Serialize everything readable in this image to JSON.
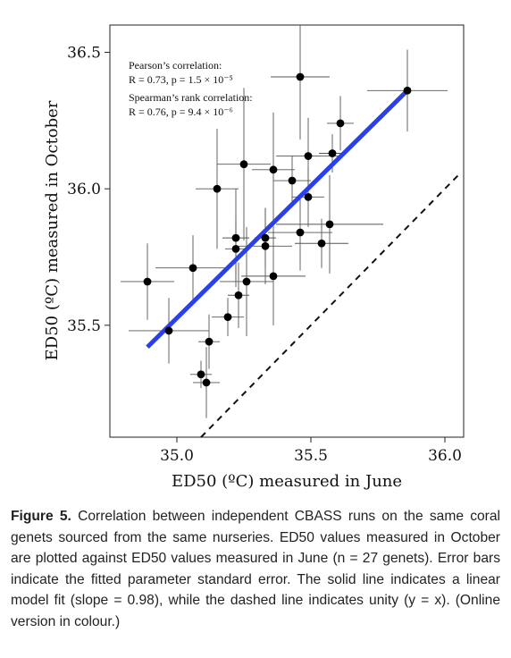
{
  "chart_data": {
    "type": "scatter",
    "xlabel": "ED50 (ºC) measured in June",
    "ylabel": "ED50 (ºC) measured in October",
    "xlim": [
      34.75,
      36.07
    ],
    "ylim": [
      35.09,
      36.6
    ],
    "xticks": [
      "35.0",
      "35.5",
      "36.0"
    ],
    "yticks": [
      "35.5",
      "36.0",
      "36.5"
    ],
    "grid": false,
    "legend": "none",
    "points": [
      {
        "x": 34.89,
        "y": 35.66,
        "xerr": 0.1,
        "yerr": 0.14
      },
      {
        "x": 34.97,
        "y": 35.48,
        "xerr": 0.15,
        "yerr": 0.12
      },
      {
        "x": 35.06,
        "y": 35.71,
        "xerr": 0.14,
        "yerr": 0.12
      },
      {
        "x": 35.09,
        "y": 35.32,
        "xerr": 0.04,
        "yerr": 0.05
      },
      {
        "x": 35.11,
        "y": 35.29,
        "xerr": 0.05,
        "yerr": 0.13
      },
      {
        "x": 35.12,
        "y": 35.44,
        "xerr": 0.04,
        "yerr": 0.1
      },
      {
        "x": 35.15,
        "y": 36.0,
        "xerr": 0.08,
        "yerr": 0.22
      },
      {
        "x": 35.19,
        "y": 35.53,
        "xerr": 0.06,
        "yerr": 0.07
      },
      {
        "x": 35.22,
        "y": 35.82,
        "xerr": 0.05,
        "yerr": 0.18
      },
      {
        "x": 35.22,
        "y": 35.78,
        "xerr": 0.04,
        "yerr": 0.12
      },
      {
        "x": 35.23,
        "y": 35.61,
        "xerr": 0.04,
        "yerr": 0.12
      },
      {
        "x": 35.25,
        "y": 36.09,
        "xerr": 0.1,
        "yerr": 0.28
      },
      {
        "x": 35.26,
        "y": 35.66,
        "xerr": 0.1,
        "yerr": 0.2
      },
      {
        "x": 35.33,
        "y": 35.79,
        "xerr": 0.1,
        "yerr": 0.14
      },
      {
        "x": 35.33,
        "y": 35.82,
        "xerr": 0.04,
        "yerr": 0.11
      },
      {
        "x": 35.36,
        "y": 36.07,
        "xerr": 0.08,
        "yerr": 0.21
      },
      {
        "x": 35.36,
        "y": 35.68,
        "xerr": 0.12,
        "yerr": 0.18
      },
      {
        "x": 35.43,
        "y": 36.03,
        "xerr": 0.07,
        "yerr": 0.09
      },
      {
        "x": 35.46,
        "y": 36.41,
        "xerr": 0.11,
        "yerr": 0.23
      },
      {
        "x": 35.46,
        "y": 35.84,
        "xerr": 0.12,
        "yerr": 0.14
      },
      {
        "x": 35.49,
        "y": 36.12,
        "xerr": 0.12,
        "yerr": 0.14
      },
      {
        "x": 35.49,
        "y": 35.97,
        "xerr": 0.06,
        "yerr": 0.11
      },
      {
        "x": 35.54,
        "y": 35.8,
        "xerr": 0.1,
        "yerr": 0.09
      },
      {
        "x": 35.57,
        "y": 35.87,
        "xerr": 0.2,
        "yerr": 0.18
      },
      {
        "x": 35.58,
        "y": 36.13,
        "xerr": 0.05,
        "yerr": 0.07
      },
      {
        "x": 35.61,
        "y": 36.24,
        "xerr": 0.05,
        "yerr": 0.1
      },
      {
        "x": 35.86,
        "y": 36.36,
        "xerr": 0.15,
        "yerr": 0.15
      }
    ],
    "fit_line": {
      "x": [
        34.89,
        35.86
      ],
      "y": [
        35.42,
        36.36
      ],
      "color": "#2a41e8"
    },
    "unity_line": {
      "x": [
        35.09,
        36.05
      ],
      "y": [
        35.09,
        36.05
      ]
    },
    "annotations": {
      "pearson_title": "Pearson’s correlation:",
      "pearson_values": "R = 0.73, p = 1.5 × 10⁻⁵",
      "spearman_title": "Spearman’s rank correlation:",
      "spearman_values": "R = 0.76, p = 9.4 × 10⁻⁶"
    }
  },
  "caption": {
    "label": "Figure 5.",
    "text": "Correlation between independent CBASS runs on the same coral genets sourced from the same nurseries. ED50 values measured in October are plotted against ED50 values measured in June (n = 27 genets). Error bars indicate the fitted parameter standard error. The solid line indicates a linear model fit (slope = 0.98), while the dashed line indicates unity (y = x). (Online version in colour.)"
  }
}
